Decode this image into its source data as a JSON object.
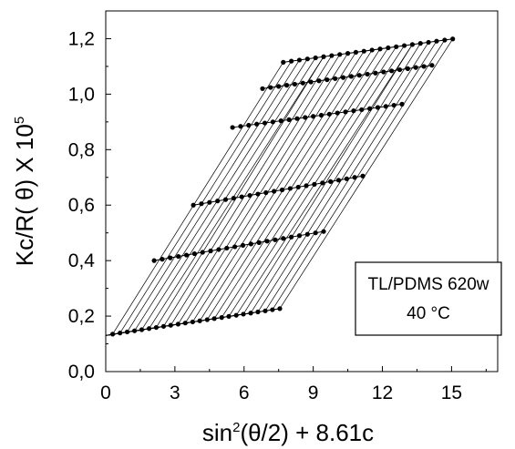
{
  "chart_data": {
    "type": "scatter",
    "title": "",
    "xlabel": {
      "prefix": "sin",
      "sup": "2",
      "suffix": "(θ/2) + 8.61c"
    },
    "ylabel": {
      "text": "Kc/R( θ) X 10",
      "sup": "5"
    },
    "xlim": [
      0,
      17
    ],
    "ylim": [
      0,
      1.3
    ],
    "xticks": [
      0,
      3,
      6,
      9,
      12,
      15
    ],
    "xtick_labels": [
      "0",
      "3",
      "6",
      "9",
      "12",
      "15"
    ],
    "yticks": [
      0.0,
      0.2,
      0.4,
      0.6,
      0.8,
      1.0,
      1.2
    ],
    "ytick_labels": [
      "0,0",
      "0,2",
      "0,4",
      "0,6",
      "0,8",
      "1,0",
      "1,2"
    ],
    "grid": false,
    "annotation": {
      "line1": "TL/PDMS 620w",
      "line2": "40 °C"
    },
    "extrapolation": {
      "intercept_x": 0,
      "intercept_y": 0.13,
      "angle_count": 24
    },
    "series": [
      {
        "values": [
          [
            0.3,
            0.135
          ],
          [
            0.62,
            0.139
          ],
          [
            0.93,
            0.143
          ],
          [
            1.25,
            0.147
          ],
          [
            1.56,
            0.151
          ],
          [
            1.88,
            0.155
          ],
          [
            2.19,
            0.159
          ],
          [
            2.51,
            0.163
          ],
          [
            2.82,
            0.167
          ],
          [
            3.14,
            0.171
          ],
          [
            3.45,
            0.175
          ],
          [
            3.77,
            0.179
          ],
          [
            4.08,
            0.183
          ],
          [
            4.4,
            0.187
          ],
          [
            4.71,
            0.191
          ],
          [
            5.03,
            0.195
          ],
          [
            5.34,
            0.199
          ],
          [
            5.66,
            0.203
          ],
          [
            5.97,
            0.207
          ],
          [
            6.29,
            0.211
          ],
          [
            6.6,
            0.215
          ],
          [
            6.92,
            0.219
          ],
          [
            7.23,
            0.223
          ],
          [
            7.55,
            0.227
          ]
        ]
      },
      {
        "values": [
          [
            2.1,
            0.4
          ],
          [
            2.45,
            0.405
          ],
          [
            2.8,
            0.41
          ],
          [
            3.15,
            0.415
          ],
          [
            3.5,
            0.42
          ],
          [
            3.85,
            0.425
          ],
          [
            4.2,
            0.43
          ],
          [
            4.55,
            0.435
          ],
          [
            4.9,
            0.44
          ],
          [
            5.25,
            0.445
          ],
          [
            5.6,
            0.45
          ],
          [
            5.95,
            0.455
          ],
          [
            6.3,
            0.46
          ],
          [
            6.65,
            0.465
          ],
          [
            7.0,
            0.47
          ],
          [
            7.35,
            0.475
          ],
          [
            7.7,
            0.48
          ],
          [
            8.05,
            0.485
          ],
          [
            8.4,
            0.49
          ],
          [
            8.75,
            0.495
          ],
          [
            9.1,
            0.5
          ],
          [
            9.45,
            0.505
          ]
        ]
      },
      {
        "values": [
          [
            3.8,
            0.6
          ],
          [
            4.15,
            0.605
          ],
          [
            4.5,
            0.61
          ],
          [
            4.85,
            0.615
          ],
          [
            5.2,
            0.62
          ],
          [
            5.55,
            0.625
          ],
          [
            5.9,
            0.63
          ],
          [
            6.25,
            0.635
          ],
          [
            6.6,
            0.64
          ],
          [
            6.95,
            0.645
          ],
          [
            7.3,
            0.65
          ],
          [
            7.65,
            0.655
          ],
          [
            8.0,
            0.66
          ],
          [
            8.35,
            0.665
          ],
          [
            8.7,
            0.67
          ],
          [
            9.05,
            0.675
          ],
          [
            9.4,
            0.68
          ],
          [
            9.75,
            0.685
          ],
          [
            10.1,
            0.69
          ],
          [
            10.45,
            0.695
          ],
          [
            10.8,
            0.7
          ],
          [
            11.15,
            0.705
          ]
        ]
      },
      {
        "values": [
          [
            5.5,
            0.88
          ],
          [
            5.85,
            0.884
          ],
          [
            6.2,
            0.888
          ],
          [
            6.55,
            0.892
          ],
          [
            6.9,
            0.896
          ],
          [
            7.25,
            0.9
          ],
          [
            7.6,
            0.904
          ],
          [
            7.95,
            0.908
          ],
          [
            8.3,
            0.912
          ],
          [
            8.65,
            0.916
          ],
          [
            9.0,
            0.92
          ],
          [
            9.35,
            0.924
          ],
          [
            9.7,
            0.928
          ],
          [
            10.05,
            0.932
          ],
          [
            10.4,
            0.936
          ],
          [
            10.75,
            0.94
          ],
          [
            11.1,
            0.944
          ],
          [
            11.45,
            0.948
          ],
          [
            11.8,
            0.952
          ],
          [
            12.15,
            0.956
          ],
          [
            12.5,
            0.96
          ],
          [
            12.85,
            0.964
          ]
        ]
      },
      {
        "values": [
          [
            6.8,
            1.02
          ],
          [
            7.15,
            1.024
          ],
          [
            7.5,
            1.028
          ],
          [
            7.85,
            1.032
          ],
          [
            8.2,
            1.036
          ],
          [
            8.55,
            1.04
          ],
          [
            8.9,
            1.044
          ],
          [
            9.25,
            1.048
          ],
          [
            9.6,
            1.052
          ],
          [
            9.95,
            1.056
          ],
          [
            10.3,
            1.06
          ],
          [
            10.65,
            1.064
          ],
          [
            11.0,
            1.068
          ],
          [
            11.35,
            1.072
          ],
          [
            11.7,
            1.076
          ],
          [
            12.05,
            1.08
          ],
          [
            12.4,
            1.084
          ],
          [
            12.75,
            1.088
          ],
          [
            13.1,
            1.092
          ],
          [
            13.45,
            1.096
          ],
          [
            13.8,
            1.1
          ],
          [
            14.15,
            1.104
          ]
        ]
      },
      {
        "values": [
          [
            7.7,
            1.115
          ],
          [
            8.05,
            1.119
          ],
          [
            8.4,
            1.123
          ],
          [
            8.75,
            1.127
          ],
          [
            9.1,
            1.131
          ],
          [
            9.45,
            1.135
          ],
          [
            9.8,
            1.139
          ],
          [
            10.15,
            1.143
          ],
          [
            10.5,
            1.147
          ],
          [
            10.85,
            1.151
          ],
          [
            11.2,
            1.155
          ],
          [
            11.55,
            1.159
          ],
          [
            11.9,
            1.163
          ],
          [
            12.25,
            1.167
          ],
          [
            12.6,
            1.171
          ],
          [
            12.95,
            1.175
          ],
          [
            13.3,
            1.179
          ],
          [
            13.65,
            1.183
          ],
          [
            14.0,
            1.187
          ],
          [
            14.35,
            1.191
          ],
          [
            14.7,
            1.195
          ],
          [
            15.05,
            1.199
          ]
        ]
      }
    ]
  }
}
